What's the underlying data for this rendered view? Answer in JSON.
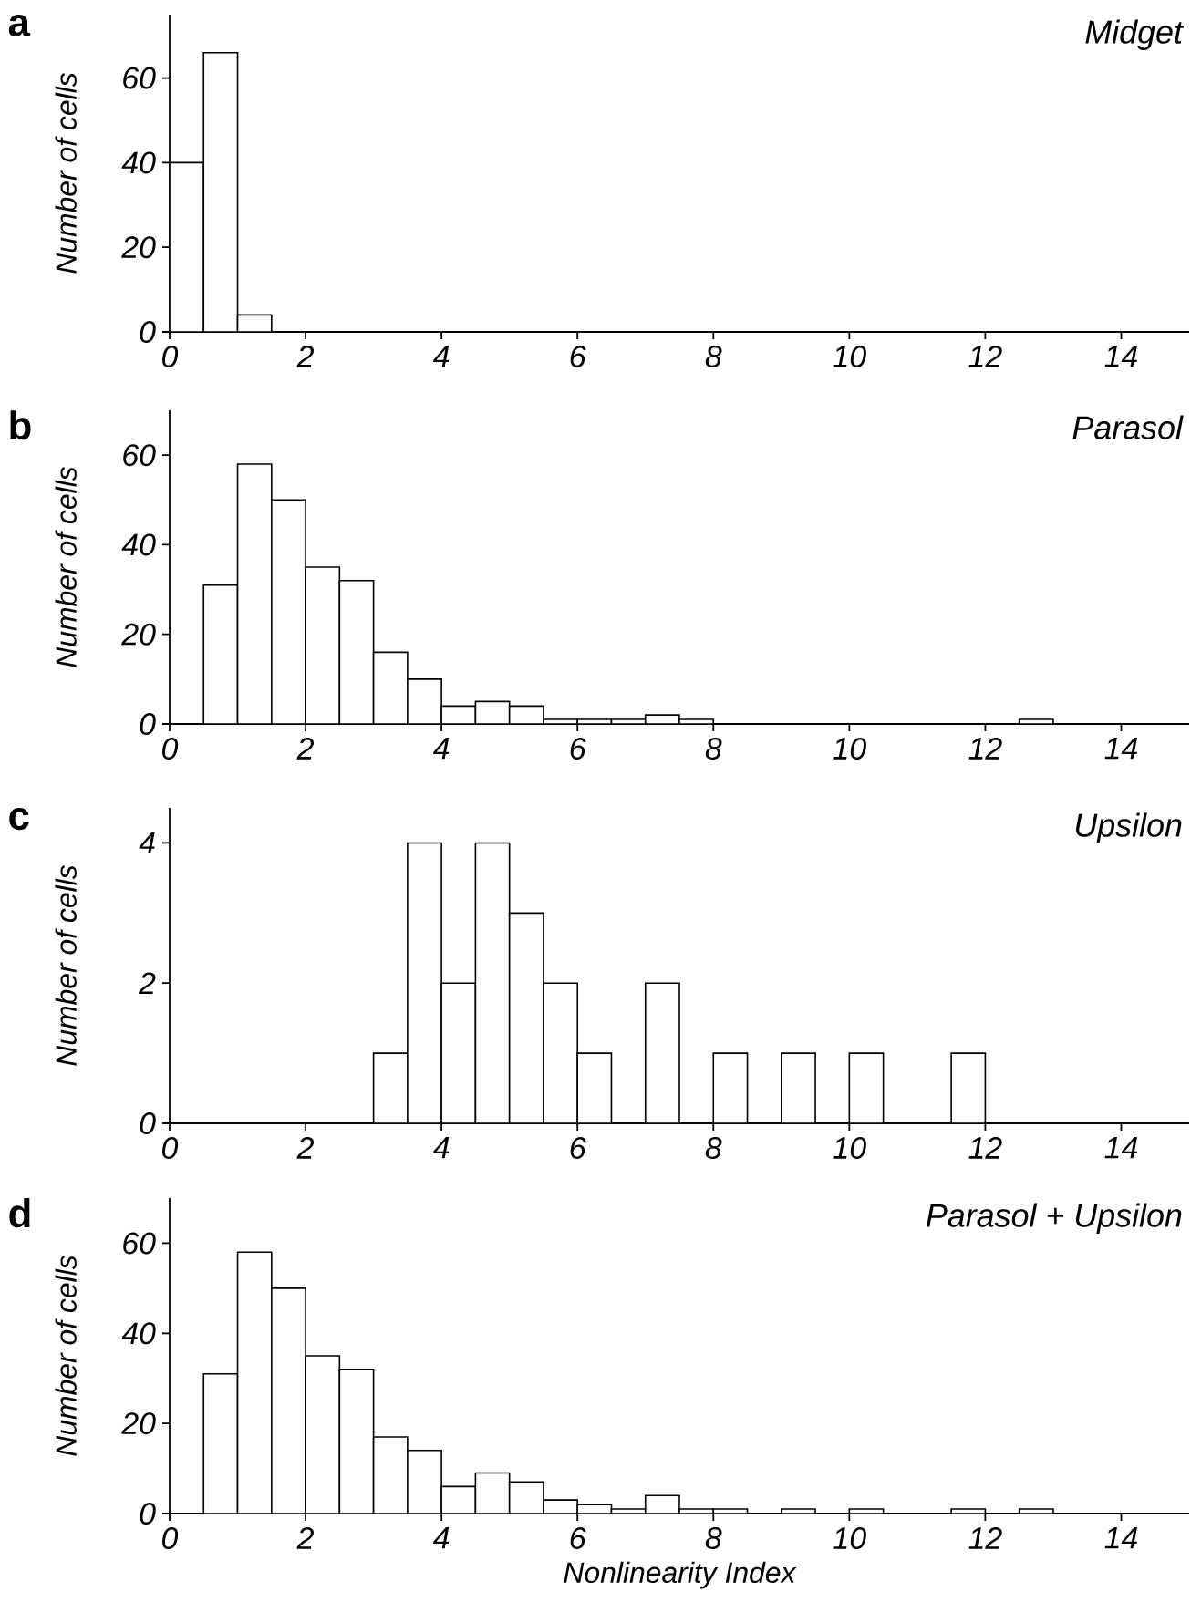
{
  "chart_data": [
    {
      "type": "histogram",
      "title": "Midget",
      "ylabel": "Number of cells",
      "annotations": [
        "a"
      ],
      "color": "#ffffff",
      "bins": [
        0,
        0.5,
        1,
        1.5,
        2,
        2.5,
        3,
        3.5,
        4,
        4.5,
        5,
        5.5,
        6,
        6.5,
        7,
        7.5,
        8,
        8.5,
        9,
        9.5,
        10,
        10.5,
        11,
        11.5,
        12,
        12.5,
        13,
        13.5,
        14,
        14.5,
        15
      ],
      "values": [
        40,
        66,
        4,
        0,
        0,
        0,
        0,
        0,
        0,
        0,
        0,
        0,
        0,
        0,
        0,
        0,
        0,
        0,
        0,
        0,
        0,
        0,
        0,
        0,
        0,
        0,
        0,
        0,
        0,
        0
      ],
      "xlim": [
        0,
        15
      ],
      "xticks": [
        0,
        2,
        4,
        6,
        8,
        10,
        12,
        14
      ],
      "ylim": [
        0,
        75
      ],
      "yticks": [
        0,
        20,
        40,
        60
      ]
    },
    {
      "type": "histogram",
      "title": "Parasol",
      "ylabel": "Number of cells",
      "annotations": [
        "b"
      ],
      "color": "#ffffff",
      "bins": [
        0,
        0.5,
        1,
        1.5,
        2,
        2.5,
        3,
        3.5,
        4,
        4.5,
        5,
        5.5,
        6,
        6.5,
        7,
        7.5,
        8,
        8.5,
        9,
        9.5,
        10,
        10.5,
        11,
        11.5,
        12,
        12.5,
        13,
        13.5,
        14,
        14.5,
        15
      ],
      "values": [
        0,
        31,
        58,
        50,
        35,
        32,
        16,
        10,
        4,
        5,
        4,
        1,
        1,
        1,
        2,
        1,
        0,
        0,
        0,
        0,
        0,
        0,
        0,
        0,
        0,
        1,
        0,
        0,
        0,
        0
      ],
      "xlim": [
        0,
        15
      ],
      "xticks": [
        0,
        2,
        4,
        6,
        8,
        10,
        12,
        14
      ],
      "ylim": [
        0,
        70
      ],
      "yticks": [
        0,
        20,
        40,
        60
      ]
    },
    {
      "type": "histogram",
      "title": "Upsilon",
      "ylabel": "Number of cells",
      "annotations": [
        "c"
      ],
      "color": "#ffffff",
      "bins": [
        0,
        0.5,
        1,
        1.5,
        2,
        2.5,
        3,
        3.5,
        4,
        4.5,
        5,
        5.5,
        6,
        6.5,
        7,
        7.5,
        8,
        8.5,
        9,
        9.5,
        10,
        10.5,
        11,
        11.5,
        12,
        12.5,
        13,
        13.5,
        14,
        14.5,
        15
      ],
      "values": [
        0,
        0,
        0,
        0,
        0,
        0,
        1,
        4,
        2,
        4,
        3,
        2,
        1,
        0,
        2,
        0,
        1,
        0,
        1,
        0,
        1,
        0,
        0,
        1,
        0,
        0,
        0,
        0,
        0,
        0
      ],
      "xlim": [
        0,
        15
      ],
      "xticks": [
        0,
        2,
        4,
        6,
        8,
        10,
        12,
        14
      ],
      "ylim": [
        0,
        4.5
      ],
      "yticks": [
        0,
        2,
        4
      ]
    },
    {
      "type": "histogram",
      "title": "Parasol + Upsilon",
      "ylabel": "Number of cells",
      "xlabel": "Nonlinearity Index",
      "annotations": [
        "d"
      ],
      "color": "#ffffff",
      "bins": [
        0,
        0.5,
        1,
        1.5,
        2,
        2.5,
        3,
        3.5,
        4,
        4.5,
        5,
        5.5,
        6,
        6.5,
        7,
        7.5,
        8,
        8.5,
        9,
        9.5,
        10,
        10.5,
        11,
        11.5,
        12,
        12.5,
        13,
        13.5,
        14,
        14.5,
        15
      ],
      "values": [
        0,
        31,
        58,
        50,
        35,
        32,
        17,
        14,
        6,
        9,
        7,
        3,
        2,
        1,
        4,
        1,
        1,
        0,
        1,
        0,
        1,
        0,
        0,
        1,
        0,
        1,
        0,
        0,
        0,
        0
      ],
      "xlim": [
        0,
        15
      ],
      "xticks": [
        0,
        2,
        4,
        6,
        8,
        10,
        12,
        14
      ],
      "ylim": [
        0,
        70
      ],
      "yticks": [
        0,
        20,
        40,
        60
      ]
    }
  ]
}
